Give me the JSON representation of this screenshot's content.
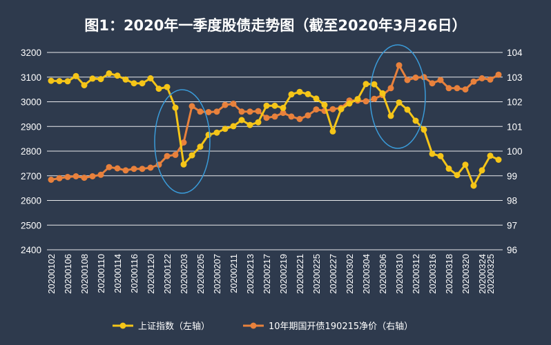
{
  "chart_data": {
    "type": "line",
    "title": "图1：2020年一季度股债走势图（截至2020年3月26日）",
    "grid": true,
    "legend_position": "bottom",
    "x": [
      "20200102",
      "20200103",
      "20200106",
      "20200107",
      "20200108",
      "20200109",
      "20200110",
      "20200113",
      "20200114",
      "20200115",
      "20200116",
      "20200117",
      "20200120",
      "20200121",
      "20200122",
      "20200123",
      "20200203",
      "20200204",
      "20200205",
      "20200206",
      "20200207",
      "20200210",
      "20200211",
      "20200212",
      "20200213",
      "20200214",
      "20200217",
      "20200218",
      "20200219",
      "20200220",
      "20200221",
      "20200224",
      "20200225",
      "20200226",
      "20200227",
      "20200228",
      "20200302",
      "20200303",
      "20200304",
      "20200305",
      "20200306",
      "20200309",
      "20200310",
      "20200311",
      "20200312",
      "20200313",
      "20200316",
      "20200317",
      "20200318",
      "20200319",
      "20200320",
      "20200323",
      "20200324",
      "20200325",
      "20200326"
    ],
    "x_tick_labels": [
      "20200102",
      "20200106",
      "20200108",
      "20200110",
      "20200114",
      "20200116",
      "20200120",
      "20200122",
      "20200203",
      "20200205",
      "20200207",
      "20200211",
      "20200213",
      "20200217",
      "20200219",
      "20200221",
      "20200225",
      "20200227",
      "20200302",
      "20200304",
      "20200306",
      "20200310",
      "20200312",
      "20200316",
      "20200318",
      "20200320",
      "20200324",
      "20200325"
    ],
    "y_left": {
      "ylim": [
        2400,
        3200
      ],
      "ticks": [
        "2400",
        "2500",
        "2600",
        "2700",
        "2800",
        "2900",
        "3000",
        "3100",
        "3200"
      ]
    },
    "y_right": {
      "ylim": [
        96,
        104
      ],
      "ticks": [
        "96",
        "97",
        "98",
        "99",
        "100",
        "101",
        "102",
        "103",
        "104"
      ]
    },
    "series": [
      {
        "name": "上证指数（左轴）",
        "axis": "left",
        "color": "#f5c518",
        "values": [
          3085,
          3084,
          3083,
          3104,
          3067,
          3094,
          3092,
          3115,
          3106,
          3090,
          3075,
          3075,
          3095,
          3053,
          3060,
          2976,
          2746,
          2783,
          2818,
          2866,
          2875,
          2890,
          2901,
          2926,
          2906,
          2917,
          2984,
          2984,
          2975,
          3030,
          3040,
          3031,
          3013,
          2987,
          2880,
          2970,
          2993,
          3011,
          3072,
          3071,
          3034,
          2943,
          2997,
          2968,
          2923,
          2887,
          2789,
          2780,
          2729,
          2703,
          2745,
          2660,
          2722,
          2781,
          2765
        ]
      },
      {
        "name": "10年期国开债190215净价（右轴）",
        "axis": "right",
        "color": "#e8813c",
        "values": [
          98.84,
          98.9,
          98.95,
          98.98,
          98.92,
          98.98,
          99.04,
          99.35,
          99.3,
          99.22,
          99.28,
          99.28,
          99.33,
          99.45,
          99.8,
          99.85,
          100.35,
          101.82,
          101.6,
          101.58,
          101.6,
          101.87,
          101.92,
          101.6,
          101.6,
          101.62,
          101.35,
          101.4,
          101.55,
          101.4,
          101.3,
          101.45,
          101.69,
          101.63,
          101.7,
          101.75,
          102.05,
          102.05,
          102.02,
          102.12,
          102.27,
          102.55,
          103.48,
          102.88,
          102.98,
          103.0,
          102.75,
          102.88,
          102.55,
          102.55,
          102.5,
          102.82,
          102.95,
          102.9,
          103.1
        ]
      }
    ],
    "annotations": [
      {
        "shape": "ellipse",
        "note": "highlight around 20200123–20200205"
      },
      {
        "shape": "ellipse",
        "note": "highlight around 20200304–20200310"
      }
    ]
  },
  "colors": {
    "background": "#2e3a4d",
    "grid": "#ffffff",
    "annotation": "#3a9bd9"
  }
}
